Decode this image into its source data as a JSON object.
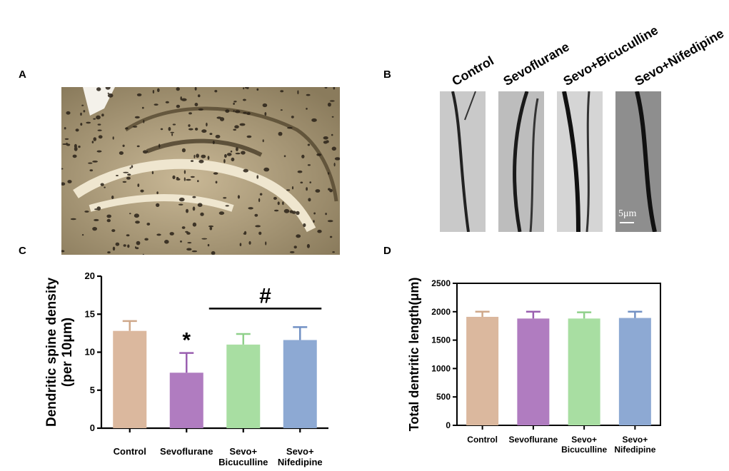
{
  "panels": {
    "a_label": "A",
    "b_label": "B",
    "c_label": "C",
    "d_label": "D"
  },
  "panel_b": {
    "groups": [
      "Control",
      "Sevoflurane",
      "Sevo+Bicuculline",
      "Sevo+Nifedipine"
    ],
    "scale_bar": "5μm"
  },
  "colors": {
    "control": "#dbb89e",
    "sevoflurane": "#b07cc0",
    "bicuculline": "#a8dea2",
    "nifedipine": "#8da9d3",
    "errorbar_control": "#cfa88a",
    "errorbar_sevoflurane": "#9a5fb0",
    "errorbar_bicuculline": "#8fd08a",
    "errorbar_nifedipine": "#7291c4"
  },
  "chart_data": [
    {
      "type": "bar",
      "panel": "C",
      "categories": [
        "Control",
        "Sevoflurane",
        "Sevo+ Bicuculline",
        "Sevo+ Nifedipine"
      ],
      "category_lines": [
        [
          "Control"
        ],
        [
          "Sevoflurane"
        ],
        [
          "Sevo+",
          "Bicuculline"
        ],
        [
          "Sevo+",
          "Nifedipine"
        ]
      ],
      "values": [
        12.8,
        7.3,
        11.0,
        11.6
      ],
      "errors": [
        1.3,
        2.6,
        1.4,
        1.7
      ],
      "ylabel_lines": [
        "Dendritic spine density",
        "(per 10μm)"
      ],
      "ylim": [
        0,
        20
      ],
      "yticks": [
        0,
        5,
        10,
        15,
        20
      ],
      "annotations": [
        {
          "text": "*",
          "category_index": 1
        },
        {
          "text": "#",
          "from_index": 2,
          "to_index": 3
        }
      ]
    },
    {
      "type": "bar",
      "panel": "D",
      "categories": [
        "Control",
        "Sevoflurane",
        "Sevo+ Bicuculline",
        "Sevo+ Nifedipine"
      ],
      "category_lines": [
        [
          "Control"
        ],
        [
          "Sevoflurane"
        ],
        [
          "Sevo+",
          "Bicuculline"
        ],
        [
          "Sevo+",
          "Nifedipine"
        ]
      ],
      "values": [
        1910,
        1880,
        1880,
        1890
      ],
      "errors": [
        90,
        120,
        110,
        110
      ],
      "ylabel": "Total dentritic length(μm)",
      "ylim": [
        0,
        2500
      ],
      "yticks": [
        0,
        500,
        1000,
        1500,
        2000,
        2500
      ]
    }
  ]
}
